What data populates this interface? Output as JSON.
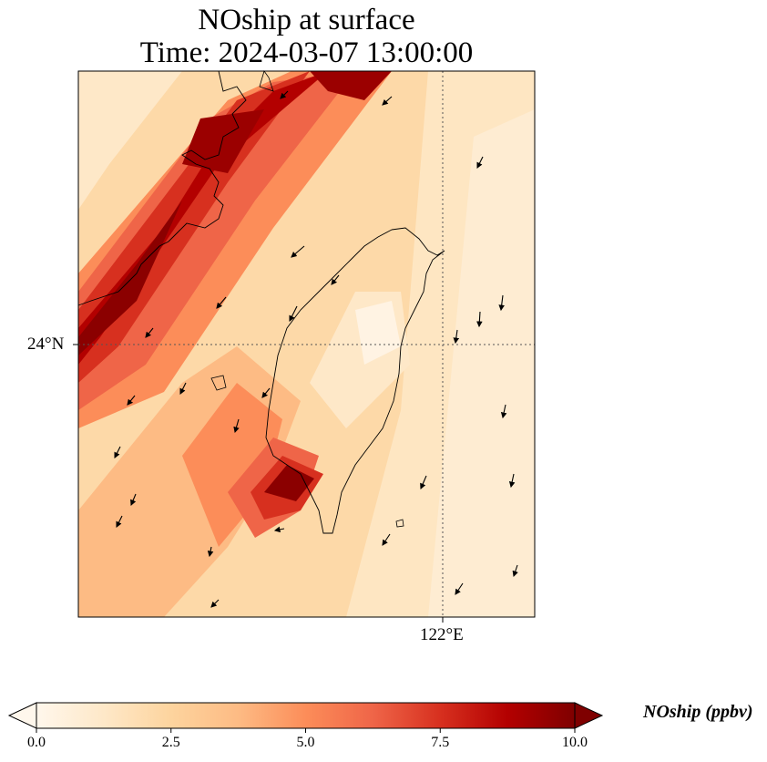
{
  "title_line1": "NOship at surface",
  "title_line2": "Time: 2024-03-07 13:00:00",
  "axes": {
    "lat_label": "24°N",
    "lon_label": "122°E"
  },
  "colorbar": {
    "label": "NOship (ppbv)",
    "min": 0.0,
    "max": 10.0,
    "ticks": [
      "0.0",
      "2.5",
      "5.0",
      "7.5",
      "10.0"
    ],
    "colormap": [
      "#fff7ec",
      "#fee8c8",
      "#fdd49e",
      "#fdbb84",
      "#fc8d59",
      "#ef6548",
      "#d7301f",
      "#b30000",
      "#7f0000"
    ],
    "extend": "both"
  },
  "map": {
    "region": "Taiwan Strait",
    "gridlines": "dotted",
    "features": [
      "coastline",
      "wind-vectors",
      "concentration-field"
    ]
  }
}
